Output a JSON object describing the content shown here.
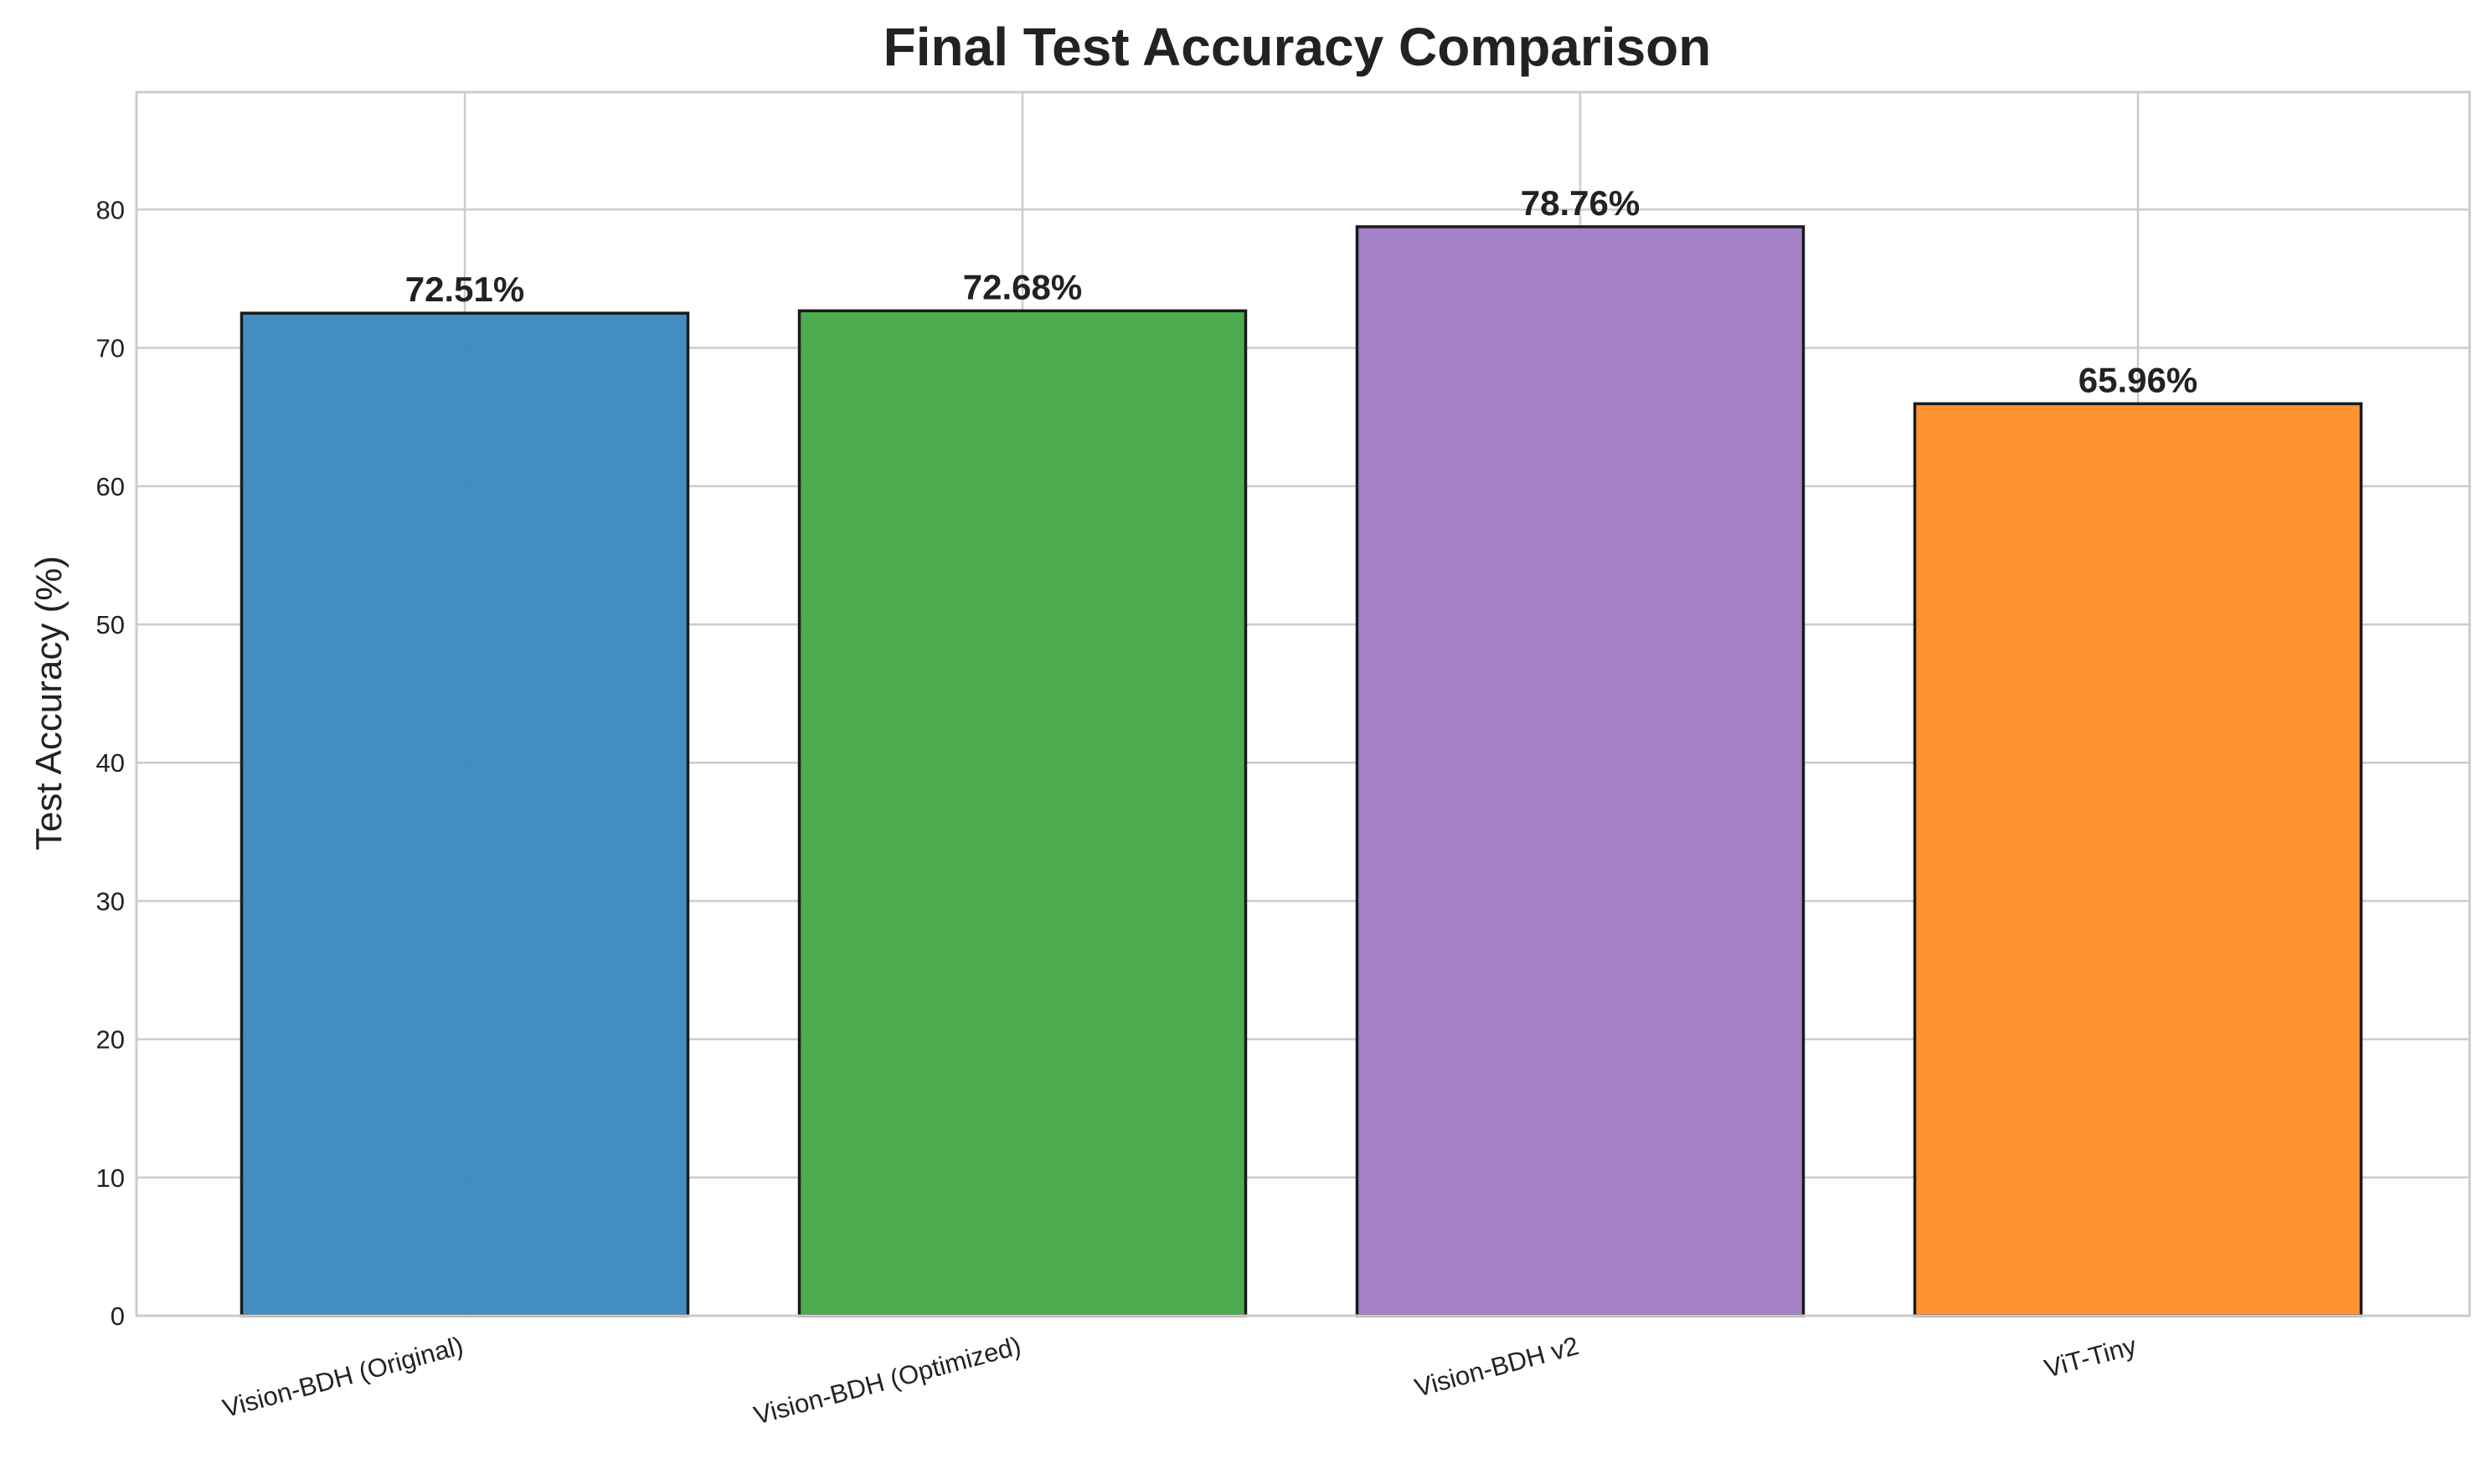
{
  "chart_data": {
    "type": "bar",
    "title": "Final Test Accuracy Comparison",
    "xlabel": "",
    "ylabel": "Test Accuracy (%)",
    "ylim": [
      0,
      88.5
    ],
    "yticks": [
      0,
      10,
      20,
      30,
      40,
      50,
      60,
      70,
      80
    ],
    "categories": [
      "Vision-BDH (Original)",
      "Vision-BDH (Optimized)",
      "Vision-BDH v2",
      "ViT-Tiny"
    ],
    "values": [
      72.51,
      72.68,
      78.76,
      65.96
    ],
    "value_labels": [
      "72.51%",
      "72.68%",
      "78.76%",
      "65.96%"
    ],
    "colors": [
      "#3a87c0",
      "#43a844",
      "#a07ac4",
      "#ff8c26"
    ],
    "grid": true,
    "legend": "none"
  }
}
